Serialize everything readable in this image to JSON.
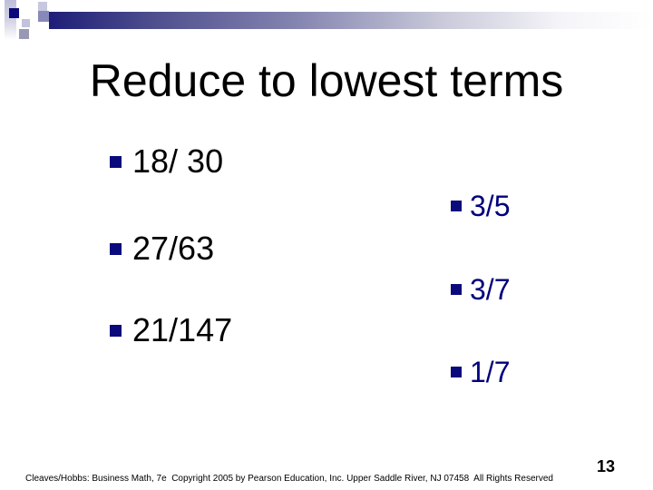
{
  "slide": {
    "title": "Reduce to lowest terms",
    "problems": [
      {
        "expression": "18/ 30",
        "answer": "3/5"
      },
      {
        "expression": "27/63",
        "answer": "3/7"
      },
      {
        "expression": "21/147",
        "answer": "1/7"
      }
    ],
    "footer_text": "Cleaves/Hobbs: Business Math, 7e  Copyright 2005 by Pearson Education, Inc. Upper Saddle River, NJ 07458  All Rights Reserved",
    "page_number": "13"
  },
  "icons": {
    "bullet": "square-bullet-icon"
  },
  "colors": {
    "answer_navy": "#00007d",
    "bullet_navy": "#0a0a7c",
    "bar_dark": "#1e1e78",
    "deco_light": "#c7c7de",
    "deco_slate": "#8888ba",
    "deco_gray": "#9898b4"
  }
}
